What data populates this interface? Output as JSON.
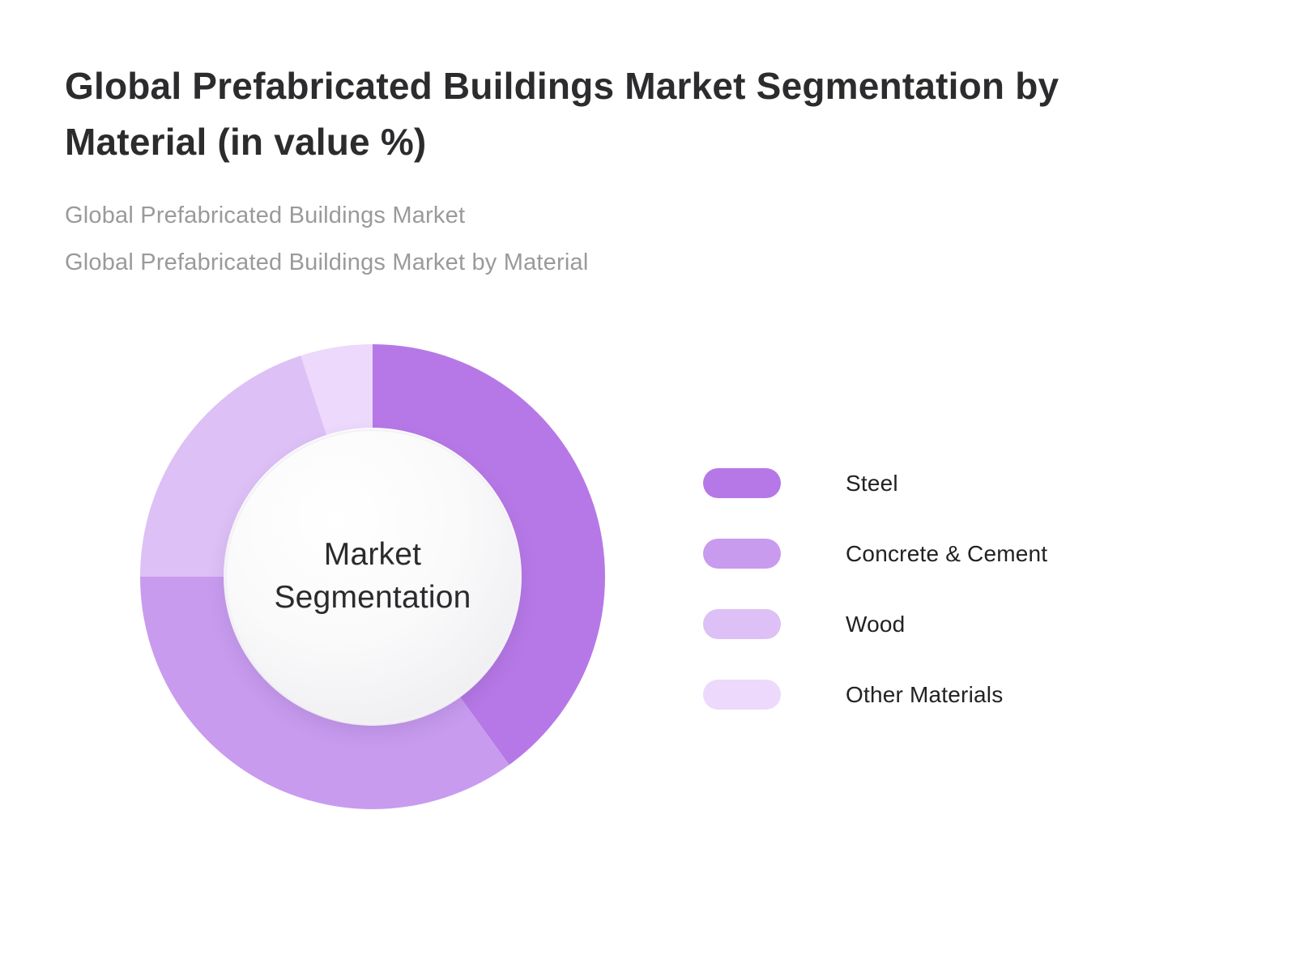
{
  "page": {
    "title": "Global Prefabricated Buildings Market Segmentation by Material (in value %)",
    "subtitle1": "Global Prefabricated Buildings Market",
    "subtitle2": "Global Prefabricated Buildings Market by Material"
  },
  "chart_data": {
    "type": "pie",
    "donut": true,
    "title": "Global Prefabricated Buildings Market Segmentation by Material (in value %)",
    "center_label": "Market Segmentation",
    "categories": [
      "Steel",
      "Concrete & Cement",
      "Wood",
      "Other Materials"
    ],
    "values": [
      40,
      35,
      20,
      5
    ],
    "unit": "%",
    "colors": [
      "#b678e6",
      "#c89bef",
      "#ddc0f5",
      "#ecd9fb"
    ],
    "legend_position": "right",
    "start_angle_deg": 0,
    "direction": "clockwise"
  }
}
